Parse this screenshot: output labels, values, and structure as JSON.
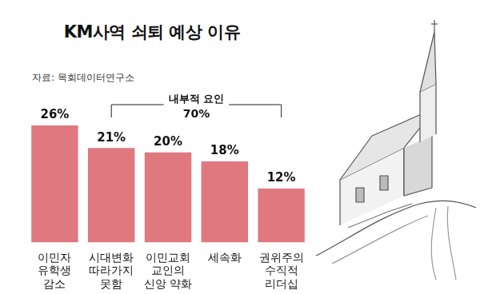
{
  "chart_data": {
    "type": "bar",
    "title": "KM사역 쇠퇴 예상 이유",
    "source": "자료: 목회데이터연구소",
    "categories": [
      [
        "이민자",
        "유학생",
        "감소"
      ],
      [
        "시대변화",
        "따라가지",
        "못함"
      ],
      [
        "이민교회",
        "교인의",
        "신앙 약화"
      ],
      [
        "세속화"
      ],
      [
        "권위주의",
        "수직적",
        "리더십"
      ]
    ],
    "values": [
      26,
      21,
      20,
      18,
      12
    ],
    "value_labels": [
      "26%",
      "21%",
      "20%",
      "18%",
      "12%"
    ],
    "data_labels": true,
    "color": "#e0787f",
    "ylim": [
      0,
      26
    ],
    "tick_labels": "x",
    "grid": false,
    "annotation": {
      "text": [
        "내부적 요인",
        "70%"
      ],
      "categories": [
        [
          "시대변화",
          "따라가지",
          "못함"
        ],
        [
          "이민교회",
          "교인의",
          "신앙 약화"
        ],
        [
          "세속화"
        ],
        [
          "권위주의",
          "수직적",
          "리더십"
        ]
      ]
    }
  }
}
